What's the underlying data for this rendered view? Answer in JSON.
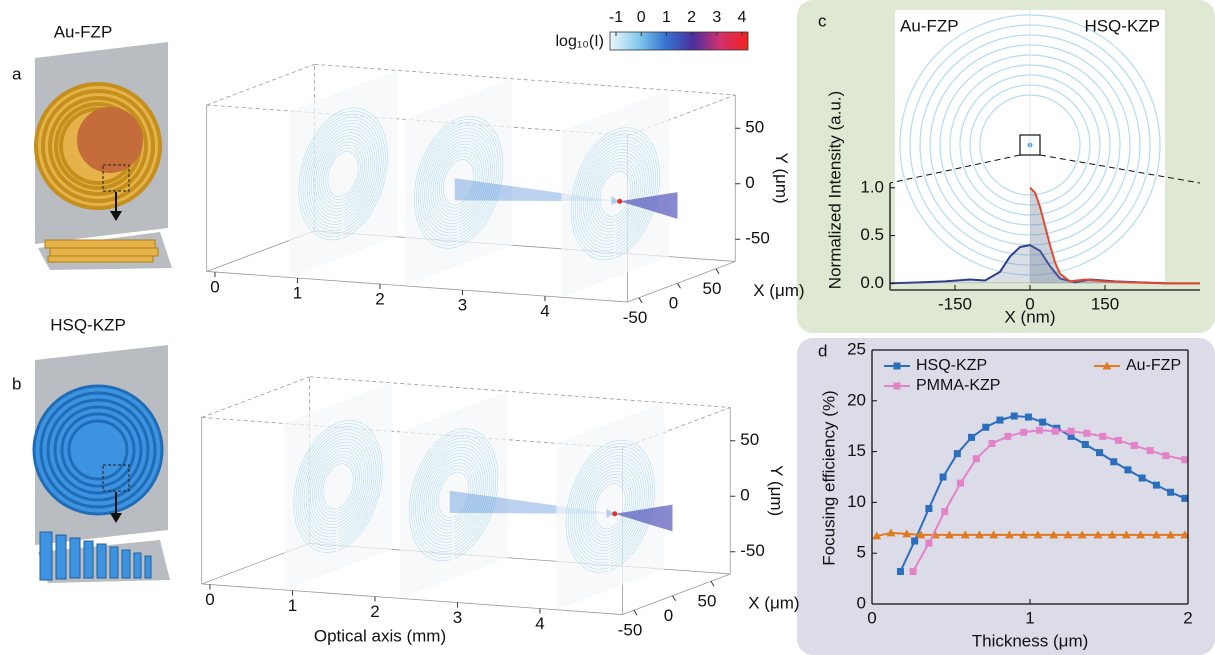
{
  "chart_data": [
    {
      "type": "volume",
      "panel": "a",
      "lens": "Au-FZP",
      "colorbar": {
        "label": "log₁₀(I)",
        "ticks": [
          -1,
          0,
          1,
          2,
          3,
          4
        ],
        "colors": [
          "#eef8fc",
          "#86cbec",
          "#3576d2",
          "#4b2e9e",
          "#d2306e",
          "#f3231c"
        ]
      },
      "xlim": [
        -0.1,
        5
      ],
      "ylim": [
        -70,
        80
      ],
      "zlim": [
        -65,
        75
      ],
      "xticks": [
        0,
        1,
        2,
        3,
        4
      ],
      "yticks": [
        -50,
        0,
        50
      ],
      "zticks": [
        -50,
        0,
        50
      ],
      "ylabel": "Y (μm)",
      "zlabel": "X (μm)"
    },
    {
      "type": "volume",
      "panel": "b",
      "lens": "HSQ-KZP",
      "xlim": [
        -0.1,
        5
      ],
      "ylim": [
        -70,
        80
      ],
      "zlim": [
        -65,
        75
      ],
      "xticks": [
        0,
        1,
        2,
        3,
        4
      ],
      "yticks": [
        -50,
        0,
        50
      ],
      "zticks": [
        -50,
        0,
        50
      ],
      "xlabel": "Optical axis (mm)",
      "ylabel": "Y (μm)",
      "zlabel": "X (μm)"
    },
    {
      "type": "line",
      "panel": "c",
      "ylabel": "Normalized Intensity (a.u.)",
      "xlabel": "X (nm)",
      "xlim": [
        -280,
        340
      ],
      "ylim": [
        -0.07,
        1.05
      ],
      "xticks": [
        -150,
        0,
        150
      ],
      "yticks": [
        {
          "value": 0,
          "label": "0.0"
        },
        0.5,
        {
          "value": 1,
          "label": "1.0"
        }
      ],
      "series": [
        {
          "name": "Au-FZP",
          "color": "#2d3f8f",
          "x": [
            -280,
            -220,
            -170,
            -120,
            -90,
            -60,
            -40,
            -20,
            0,
            20,
            40,
            60,
            90,
            120,
            170,
            220,
            280,
            340
          ],
          "values": [
            0,
            0.01,
            0.02,
            0.04,
            0.03,
            0.12,
            0.28,
            0.38,
            0.4,
            0.34,
            0.18,
            0.05,
            0.01,
            0.04,
            0.02,
            0.01,
            0,
            0
          ]
        },
        {
          "name": "HSQ-KZP",
          "color": "#e2492f",
          "x": [
            0,
            10,
            20,
            30,
            40,
            50,
            60,
            80,
            110,
            150,
            200,
            270,
            340
          ],
          "values": [
            1.0,
            0.95,
            0.8,
            0.6,
            0.4,
            0.22,
            0.1,
            0.02,
            0.04,
            0.02,
            0.01,
            0,
            0
          ]
        }
      ]
    },
    {
      "type": "line",
      "panel": "d",
      "ylabel": "Focusing efficiency (%)",
      "xlabel": "Thickness (μm)",
      "xlim": [
        0,
        2
      ],
      "ylim": [
        0,
        25
      ],
      "xticks": [
        0,
        1,
        2
      ],
      "yticks": [
        0,
        5,
        10,
        15,
        20,
        25
      ],
      "series": [
        {
          "name": "HSQ-KZP",
          "color": "#2a6ebd",
          "marker": "square",
          "x": [
            0.18,
            0.27,
            0.36,
            0.45,
            0.54,
            0.63,
            0.72,
            0.81,
            0.9,
            0.99,
            1.08,
            1.17,
            1.26,
            1.35,
            1.44,
            1.53,
            1.62,
            1.71,
            1.8,
            1.89,
            1.98
          ],
          "values": [
            3.2,
            6.2,
            9.4,
            12.5,
            14.8,
            16.4,
            17.4,
            18.1,
            18.5,
            18.4,
            17.9,
            17.3,
            16.5,
            15.7,
            14.9,
            14.0,
            13.2,
            12.4,
            11.7,
            11.0,
            10.4
          ]
        },
        {
          "name": "Au-FZP",
          "color": "#e07b22",
          "marker": "triangle",
          "x": [
            0.03,
            0.12,
            0.22,
            0.31,
            0.4,
            0.49,
            0.59,
            0.68,
            0.77,
            0.87,
            0.96,
            1.05,
            1.15,
            1.24,
            1.33,
            1.43,
            1.52,
            1.61,
            1.7,
            1.8,
            1.89,
            1.98
          ],
          "values": [
            6.7,
            7.0,
            6.9,
            6.8,
            6.8,
            6.8,
            6.8,
            6.8,
            6.8,
            6.8,
            6.8,
            6.8,
            6.8,
            6.8,
            6.8,
            6.8,
            6.8,
            6.8,
            6.8,
            6.8,
            6.8,
            6.8
          ]
        },
        {
          "name": "PMMA-KZP",
          "color": "#e283c8",
          "marker": "square",
          "x": [
            0.26,
            0.36,
            0.46,
            0.56,
            0.66,
            0.76,
            0.86,
            0.96,
            1.06,
            1.16,
            1.26,
            1.36,
            1.46,
            1.56,
            1.66,
            1.76,
            1.86,
            1.98
          ],
          "values": [
            3.2,
            6.0,
            9.1,
            11.9,
            14.3,
            15.8,
            16.5,
            16.9,
            17.1,
            17.0,
            17.0,
            16.8,
            16.5,
            16.1,
            15.6,
            15.1,
            14.6,
            14.2
          ]
        }
      ]
    }
  ]
}
